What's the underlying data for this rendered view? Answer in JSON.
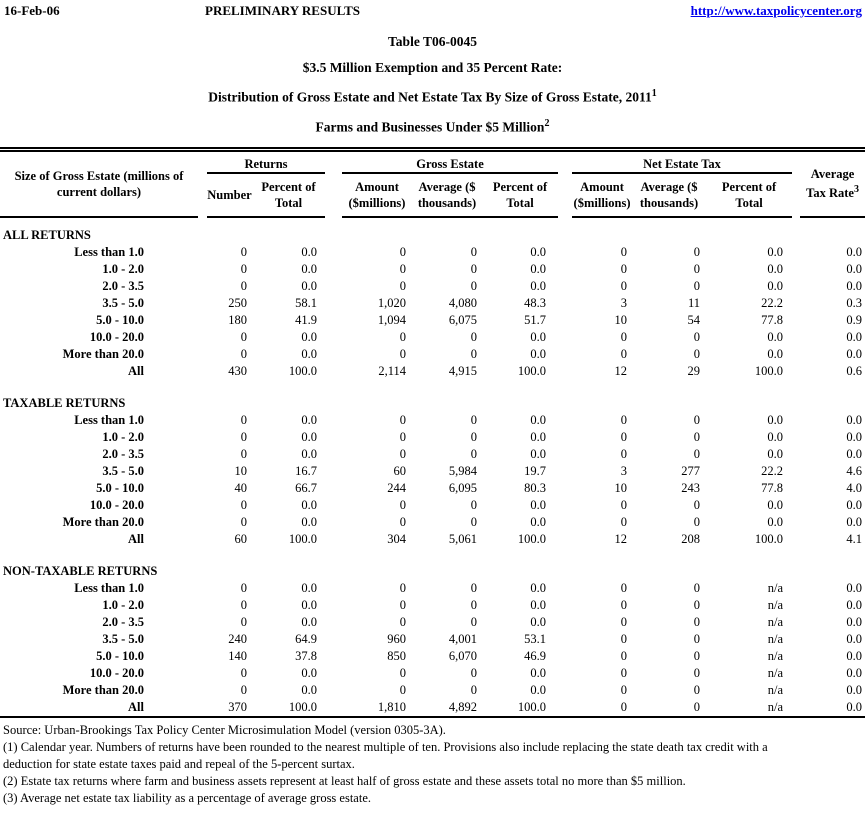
{
  "header": {
    "date": "16-Feb-06",
    "status": "PRELIMINARY RESULTS",
    "url": "http://www.taxpolicycenter.org"
  },
  "title": {
    "line1": "Table T06-0045",
    "line2": "$3.5 Million Exemption and 35 Percent Rate:",
    "line3": "Distribution of Gross Estate and Net Estate Tax By Size of Gross Estate, 2011",
    "line3_sup": "1",
    "line4": "Farms and Businesses Under $5 Million",
    "line4_sup": "2"
  },
  "table": {
    "row_header_lines": [
      "Size of Gross Estate (millions of",
      "current dollars)"
    ],
    "groups": [
      {
        "label": "Returns",
        "subs": [
          [
            "Number"
          ],
          [
            "Percent of",
            "Total"
          ]
        ]
      },
      {
        "label": "Gross Estate",
        "subs": [
          [
            "Amount",
            "($millions)"
          ],
          [
            "Average ($",
            "thousands)"
          ],
          [
            "Percent of",
            "Total"
          ]
        ]
      },
      {
        "label": "Net Estate Tax",
        "subs": [
          [
            "Amount",
            "($millions)"
          ],
          [
            "Average ($",
            "thousands)"
          ],
          [
            "Percent of",
            "Total"
          ]
        ]
      }
    ],
    "rate_header_lines": [
      "Average",
      "Tax Rate"
    ],
    "rate_header_sup": "3",
    "sections": [
      {
        "name": "ALL RETURNS",
        "rows": [
          {
            "label": "Less than 1.0",
            "values": [
              "0",
              "0.0",
              "0",
              "0",
              "0.0",
              "0",
              "0",
              "0.0",
              "0.0"
            ]
          },
          {
            "label": "1.0 - 2.0",
            "values": [
              "0",
              "0.0",
              "0",
              "0",
              "0.0",
              "0",
              "0",
              "0.0",
              "0.0"
            ]
          },
          {
            "label": "2.0 - 3.5",
            "values": [
              "0",
              "0.0",
              "0",
              "0",
              "0.0",
              "0",
              "0",
              "0.0",
              "0.0"
            ]
          },
          {
            "label": "3.5 - 5.0",
            "values": [
              "250",
              "58.1",
              "1,020",
              "4,080",
              "48.3",
              "3",
              "11",
              "22.2",
              "0.3"
            ]
          },
          {
            "label": "5.0 - 10.0",
            "values": [
              "180",
              "41.9",
              "1,094",
              "6,075",
              "51.7",
              "10",
              "54",
              "77.8",
              "0.9"
            ]
          },
          {
            "label": "10.0 - 20.0",
            "values": [
              "0",
              "0.0",
              "0",
              "0",
              "0.0",
              "0",
              "0",
              "0.0",
              "0.0"
            ]
          },
          {
            "label": "More than 20.0",
            "values": [
              "0",
              "0.0",
              "0",
              "0",
              "0.0",
              "0",
              "0",
              "0.0",
              "0.0"
            ]
          },
          {
            "label": "All",
            "values": [
              "430",
              "100.0",
              "2,114",
              "4,915",
              "100.0",
              "12",
              "29",
              "100.0",
              "0.6"
            ]
          }
        ]
      },
      {
        "name": "TAXABLE RETURNS",
        "rows": [
          {
            "label": "Less than 1.0",
            "values": [
              "0",
              "0.0",
              "0",
              "0",
              "0.0",
              "0",
              "0",
              "0.0",
              "0.0"
            ]
          },
          {
            "label": "1.0 - 2.0",
            "values": [
              "0",
              "0.0",
              "0",
              "0",
              "0.0",
              "0",
              "0",
              "0.0",
              "0.0"
            ]
          },
          {
            "label": "2.0 - 3.5",
            "values": [
              "0",
              "0.0",
              "0",
              "0",
              "0.0",
              "0",
              "0",
              "0.0",
              "0.0"
            ]
          },
          {
            "label": "3.5 - 5.0",
            "values": [
              "10",
              "16.7",
              "60",
              "5,984",
              "19.7",
              "3",
              "277",
              "22.2",
              "4.6"
            ]
          },
          {
            "label": "5.0 - 10.0",
            "values": [
              "40",
              "66.7",
              "244",
              "6,095",
              "80.3",
              "10",
              "243",
              "77.8",
              "4.0"
            ]
          },
          {
            "label": "10.0 - 20.0",
            "values": [
              "0",
              "0.0",
              "0",
              "0",
              "0.0",
              "0",
              "0",
              "0.0",
              "0.0"
            ]
          },
          {
            "label": "More than 20.0",
            "values": [
              "0",
              "0.0",
              "0",
              "0",
              "0.0",
              "0",
              "0",
              "0.0",
              "0.0"
            ]
          },
          {
            "label": "All",
            "values": [
              "60",
              "100.0",
              "304",
              "5,061",
              "100.0",
              "12",
              "208",
              "100.0",
              "4.1"
            ]
          }
        ]
      },
      {
        "name": "NON-TAXABLE RETURNS",
        "rows": [
          {
            "label": "Less than 1.0",
            "values": [
              "0",
              "0.0",
              "0",
              "0",
              "0.0",
              "0",
              "0",
              "n/a",
              "0.0"
            ]
          },
          {
            "label": "1.0 - 2.0",
            "values": [
              "0",
              "0.0",
              "0",
              "0",
              "0.0",
              "0",
              "0",
              "n/a",
              "0.0"
            ]
          },
          {
            "label": "2.0 - 3.5",
            "values": [
              "0",
              "0.0",
              "0",
              "0",
              "0.0",
              "0",
              "0",
              "n/a",
              "0.0"
            ]
          },
          {
            "label": "3.5 - 5.0",
            "values": [
              "240",
              "64.9",
              "960",
              "4,001",
              "53.1",
              "0",
              "0",
              "n/a",
              "0.0"
            ]
          },
          {
            "label": "5.0 - 10.0",
            "values": [
              "140",
              "37.8",
              "850",
              "6,070",
              "46.9",
              "0",
              "0",
              "n/a",
              "0.0"
            ]
          },
          {
            "label": "10.0 - 20.0",
            "values": [
              "0",
              "0.0",
              "0",
              "0",
              "0.0",
              "0",
              "0",
              "n/a",
              "0.0"
            ]
          },
          {
            "label": "More than 20.0",
            "values": [
              "0",
              "0.0",
              "0",
              "0",
              "0.0",
              "0",
              "0",
              "n/a",
              "0.0"
            ]
          },
          {
            "label": "All",
            "values": [
              "370",
              "100.0",
              "1,810",
              "4,892",
              "100.0",
              "0",
              "0",
              "n/a",
              "0.0"
            ]
          }
        ]
      }
    ]
  },
  "notes": {
    "source": "Source: Urban-Brookings Tax Policy Center Microsimulation Model (version 0305-3A).",
    "note1_lines": [
      "(1) Calendar year. Numbers of returns have been rounded to the nearest multiple of ten. Provisions also include replacing the state death tax credit with a",
      "deduction for state estate taxes paid and repeal of the 5-percent surtax."
    ],
    "note2": "(2) Estate tax returns where farm and business assets represent at least half of gross estate and these assets total no more than $5 million.",
    "note3": "(3) Average net estate tax liability as a percentage of average gross estate."
  },
  "colors": {
    "link_blue": "#0000ee",
    "text": "#000000",
    "background": "#ffffff"
  }
}
